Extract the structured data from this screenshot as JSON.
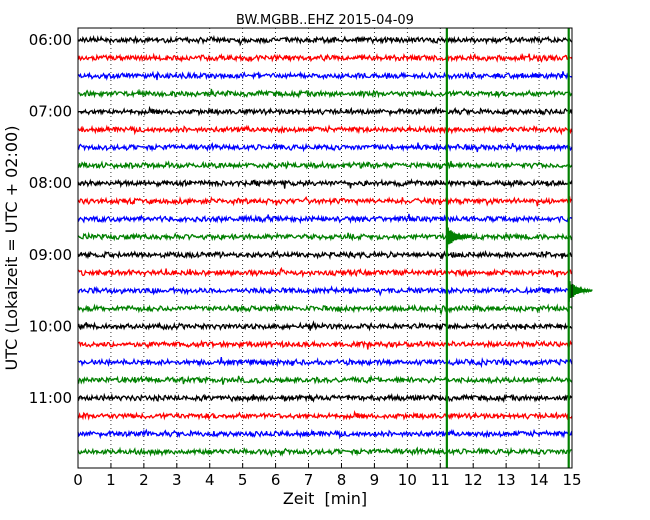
{
  "chart_data": {
    "type": "line",
    "title": "BW.MGBB..EHZ 2015-04-09",
    "xlabel": "Zeit  [min]",
    "ylabel": "UTC (Lokalzeit = UTC + 02:00)",
    "xlim": [
      0,
      15
    ],
    "x_ticks": [
      0,
      1,
      2,
      3,
      4,
      5,
      6,
      7,
      8,
      9,
      10,
      11,
      12,
      13,
      14,
      15
    ],
    "x_tick_labels": [
      "0",
      "1",
      "2",
      "3",
      "4",
      "5",
      "6",
      "7",
      "8",
      "9",
      "10",
      "11",
      "12",
      "13",
      "14",
      "15"
    ],
    "y_tick_labels": [
      "06:00",
      "07:00",
      "08:00",
      "09:00",
      "10:00",
      "11:00"
    ],
    "trace_minutes": 15,
    "trace_count": 24,
    "trace_colors": [
      "#000000",
      "#ff0000",
      "#0000ff",
      "#008000"
    ],
    "trace_start_times": [
      "06:00",
      "06:15",
      "06:30",
      "06:45",
      "07:00",
      "07:15",
      "07:30",
      "07:45",
      "08:00",
      "08:15",
      "08:30",
      "08:45",
      "09:00",
      "09:15",
      "09:30",
      "09:45",
      "10:00",
      "10:15",
      "10:30",
      "10:45",
      "11:00",
      "11:15",
      "11:30",
      "11:45"
    ],
    "events": [
      {
        "time": "08:45",
        "minute": 11.2,
        "label": ""
      },
      {
        "time": "09:30",
        "minute": 14.9,
        "label": ""
      }
    ],
    "event_color": "#008000",
    "grid": true
  }
}
